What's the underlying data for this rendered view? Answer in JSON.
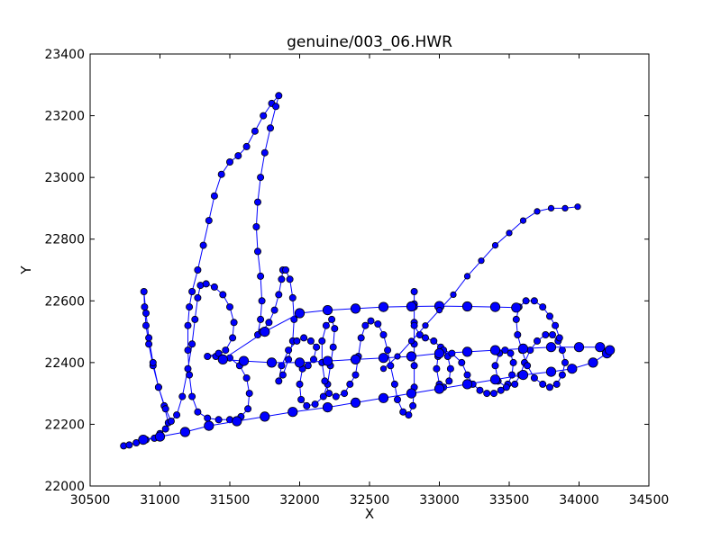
{
  "chart_data": {
    "type": "scatter",
    "title": "genuine/003_06.HWR",
    "xlabel": "X",
    "ylabel": "Y",
    "xlim": [
      30500,
      34500
    ],
    "ylim": [
      22000,
      23400
    ],
    "xticks": [
      30500,
      31000,
      31500,
      32000,
      32500,
      33000,
      33500,
      34000,
      34500
    ],
    "yticks": [
      22000,
      22200,
      22400,
      22600,
      22800,
      23000,
      23200,
      23400
    ],
    "grid": false,
    "marker_color": "#0000ff",
    "line_color": "#0000ff",
    "series": [
      {
        "name": "",
        "points": [
          [
            30740,
            22130
          ],
          [
            30780,
            22133
          ],
          [
            30830,
            22140
          ],
          [
            30900,
            22150
          ],
          [
            30960,
            22155
          ],
          [
            31000,
            22170
          ],
          [
            31040,
            22185
          ],
          [
            31060,
            22205
          ],
          [
            31030,
            22260
          ],
          [
            30990,
            22320
          ],
          [
            30950,
            22390
          ],
          [
            30920,
            22460
          ],
          [
            30900,
            22520
          ],
          [
            30890,
            22580
          ],
          [
            30885,
            22630
          ],
          [
            30900,
            22560
          ],
          [
            30920,
            22480
          ],
          [
            30950,
            22400
          ],
          [
            30990,
            22320
          ],
          [
            31040,
            22250
          ],
          [
            31080,
            22210
          ],
          [
            31120,
            22230
          ],
          [
            31160,
            22290
          ],
          [
            31200,
            22380
          ],
          [
            31230,
            22460
          ],
          [
            31250,
            22540
          ],
          [
            31270,
            22610
          ],
          [
            31290,
            22650
          ],
          [
            31330,
            22655
          ],
          [
            31390,
            22645
          ],
          [
            31450,
            22620
          ],
          [
            31500,
            22580
          ],
          [
            31530,
            22530
          ],
          [
            31520,
            22480
          ],
          [
            31470,
            22440
          ],
          [
            31400,
            22420
          ],
          [
            31340,
            22420
          ],
          [
            31420,
            22430
          ],
          [
            31500,
            22415
          ],
          [
            31570,
            22390
          ],
          [
            31620,
            22350
          ],
          [
            31640,
            22300
          ],
          [
            31630,
            22250
          ],
          [
            31580,
            22225
          ],
          [
            31500,
            22215
          ],
          [
            31420,
            22215
          ],
          [
            31340,
            22220
          ],
          [
            31270,
            22240
          ],
          [
            31230,
            22290
          ],
          [
            31210,
            22360
          ],
          [
            31200,
            22440
          ],
          [
            31200,
            22520
          ],
          [
            31210,
            22580
          ],
          [
            31230,
            22630
          ],
          [
            31270,
            22700
          ],
          [
            31310,
            22780
          ],
          [
            31350,
            22860
          ],
          [
            31390,
            22940
          ],
          [
            31440,
            23010
          ],
          [
            31500,
            23050
          ],
          [
            31560,
            23070
          ],
          [
            31620,
            23100
          ],
          [
            31680,
            23150
          ],
          [
            31740,
            23200
          ],
          [
            31800,
            23240
          ],
          [
            31850,
            23265
          ],
          [
            31830,
            23230
          ],
          [
            31790,
            23160
          ],
          [
            31750,
            23080
          ],
          [
            31720,
            23000
          ],
          [
            31700,
            22920
          ],
          [
            31690,
            22840
          ],
          [
            31700,
            22760
          ],
          [
            31720,
            22680
          ],
          [
            31730,
            22600
          ],
          [
            31720,
            22540
          ],
          [
            31700,
            22490
          ],
          [
            31730,
            22500
          ],
          [
            31780,
            22530
          ],
          [
            31820,
            22570
          ],
          [
            31850,
            22620
          ],
          [
            31870,
            22670
          ],
          [
            31880,
            22700
          ],
          [
            31900,
            22700
          ],
          [
            31930,
            22670
          ],
          [
            31950,
            22610
          ],
          [
            31960,
            22540
          ],
          [
            31950,
            22470
          ],
          [
            31920,
            22410
          ],
          [
            31880,
            22360
          ],
          [
            31850,
            22340
          ],
          [
            31870,
            22390
          ],
          [
            31920,
            22440
          ],
          [
            31980,
            22470
          ],
          [
            32030,
            22480
          ],
          [
            32080,
            22470
          ],
          [
            32120,
            22450
          ],
          [
            32100,
            22410
          ],
          [
            32060,
            22390
          ],
          [
            32020,
            22380
          ],
          [
            32000,
            22330
          ],
          [
            32010,
            22280
          ],
          [
            32050,
            22260
          ],
          [
            32110,
            22265
          ],
          [
            32170,
            22290
          ],
          [
            32200,
            22330
          ],
          [
            32220,
            22390
          ],
          [
            32240,
            22450
          ],
          [
            32250,
            22510
          ],
          [
            32230,
            22540
          ],
          [
            32190,
            22520
          ],
          [
            32160,
            22470
          ],
          [
            32160,
            22400
          ],
          [
            32180,
            22340
          ],
          [
            32210,
            22300
          ],
          [
            32260,
            22290
          ],
          [
            32320,
            22300
          ],
          [
            32360,
            22330
          ],
          [
            32400,
            22360
          ],
          [
            32420,
            22420
          ],
          [
            32440,
            22480
          ],
          [
            32470,
            22520
          ],
          [
            32510,
            22535
          ],
          [
            32560,
            22525
          ],
          [
            32600,
            22490
          ],
          [
            32630,
            22440
          ],
          [
            32650,
            22390
          ],
          [
            32680,
            22330
          ],
          [
            32700,
            22280
          ],
          [
            32740,
            22240
          ],
          [
            32780,
            22230
          ],
          [
            32810,
            22260
          ],
          [
            32820,
            22320
          ],
          [
            32820,
            22390
          ],
          [
            32820,
            22460
          ],
          [
            32820,
            22530
          ],
          [
            32820,
            22590
          ],
          [
            32820,
            22630
          ],
          [
            32820,
            22580
          ],
          [
            32820,
            22520
          ],
          [
            32860,
            22490
          ],
          [
            32900,
            22480
          ],
          [
            32960,
            22470
          ],
          [
            33010,
            22450
          ],
          [
            33060,
            22420
          ],
          [
            33080,
            22380
          ],
          [
            33070,
            22340
          ],
          [
            33030,
            22320
          ],
          [
            33000,
            22330
          ],
          [
            32980,
            22380
          ],
          [
            32990,
            22420
          ],
          [
            33030,
            22440
          ],
          [
            33090,
            22430
          ],
          [
            33160,
            22400
          ],
          [
            33200,
            22360
          ],
          [
            33240,
            22330
          ],
          [
            33290,
            22310
          ],
          [
            33340,
            22300
          ],
          [
            33390,
            22300
          ],
          [
            33440,
            22310
          ],
          [
            33490,
            22330
          ],
          [
            33520,
            22360
          ],
          [
            33530,
            22400
          ],
          [
            33510,
            22430
          ],
          [
            33470,
            22440
          ],
          [
            33430,
            22430
          ],
          [
            33400,
            22390
          ],
          [
            33420,
            22340
          ],
          [
            33480,
            22320
          ],
          [
            33540,
            22330
          ],
          [
            33580,
            22360
          ],
          [
            33610,
            22400
          ],
          [
            33650,
            22440
          ],
          [
            33700,
            22470
          ],
          [
            33760,
            22490
          ],
          [
            33810,
            22490
          ],
          [
            33850,
            22470
          ],
          [
            33880,
            22440
          ],
          [
            33900,
            22400
          ],
          [
            33880,
            22360
          ],
          [
            33840,
            22330
          ],
          [
            33790,
            22320
          ],
          [
            33740,
            22330
          ],
          [
            33680,
            22350
          ],
          [
            33630,
            22390
          ],
          [
            33590,
            22440
          ],
          [
            33560,
            22490
          ],
          [
            33550,
            22540
          ],
          [
            33570,
            22580
          ],
          [
            33620,
            22600
          ],
          [
            33680,
            22600
          ],
          [
            33740,
            22580
          ],
          [
            33790,
            22550
          ],
          [
            33830,
            22520
          ],
          [
            33860,
            22480
          ]
        ]
      },
      {
        "name": "",
        "points": [
          [
            30880,
            22150
          ],
          [
            31000,
            22160
          ],
          [
            31180,
            22175
          ],
          [
            31350,
            22195
          ],
          [
            31550,
            22210
          ],
          [
            31750,
            22225
          ],
          [
            31950,
            22240
          ],
          [
            32200,
            22255
          ],
          [
            32400,
            22270
          ],
          [
            32600,
            22285
          ],
          [
            32800,
            22300
          ],
          [
            33000,
            22315
          ],
          [
            33200,
            22330
          ],
          [
            33400,
            22345
          ],
          [
            33600,
            22360
          ],
          [
            33800,
            22370
          ],
          [
            33950,
            22380
          ],
          [
            34100,
            22400
          ],
          [
            34200,
            22430
          ],
          [
            34220,
            22440
          ],
          [
            34150,
            22450
          ],
          [
            34000,
            22450
          ],
          [
            33800,
            22450
          ],
          [
            33600,
            22445
          ],
          [
            33400,
            22440
          ],
          [
            33200,
            22435
          ],
          [
            33000,
            22430
          ],
          [
            32800,
            22420
          ],
          [
            32600,
            22415
          ],
          [
            32400,
            22410
          ],
          [
            32200,
            22405
          ],
          [
            32000,
            22400
          ],
          [
            31800,
            22400
          ],
          [
            31600,
            22405
          ],
          [
            31450,
            22410
          ],
          [
            31750,
            22500
          ],
          [
            32000,
            22560
          ],
          [
            32200,
            22570
          ],
          [
            32400,
            22575
          ],
          [
            32600,
            22580
          ],
          [
            32800,
            22582
          ],
          [
            33000,
            22583
          ],
          [
            33200,
            22582
          ],
          [
            33400,
            22580
          ],
          [
            33550,
            22578
          ]
        ]
      },
      {
        "name": "",
        "points": [
          [
            32600,
            22380
          ],
          [
            32700,
            22420
          ],
          [
            32800,
            22470
          ],
          [
            32900,
            22520
          ],
          [
            33000,
            22570
          ],
          [
            33100,
            22620
          ],
          [
            33200,
            22680
          ],
          [
            33300,
            22730
          ],
          [
            33400,
            22780
          ],
          [
            33500,
            22820
          ],
          [
            33600,
            22860
          ],
          [
            33700,
            22890
          ],
          [
            33800,
            22900
          ],
          [
            33900,
            22900
          ],
          [
            33990,
            22905
          ]
        ]
      }
    ]
  }
}
